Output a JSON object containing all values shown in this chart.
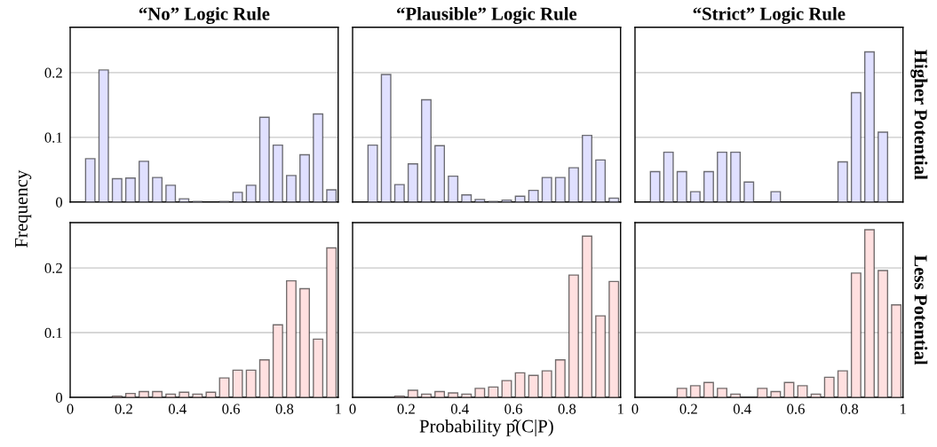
{
  "chart_data": [
    {
      "type": "histogram",
      "title": "“No” Logic Rule",
      "ylabel": "Frequency",
      "bins": [
        0,
        0.05,
        0.1,
        0.15,
        0.2,
        0.25,
        0.3,
        0.35,
        0.4,
        0.45,
        0.5,
        0.55,
        0.6,
        0.65,
        0.7,
        0.75,
        0.8,
        0.85,
        0.9,
        0.95,
        1
      ],
      "values": [
        0,
        0.067,
        0.204,
        0.036,
        0.037,
        0.063,
        0.038,
        0.026,
        0.005,
        0.001,
        0,
        0.001,
        0.015,
        0.026,
        0.131,
        0.088,
        0.041,
        0.073,
        0.136,
        0.019
      ],
      "color": "#e0e0ff",
      "xlim": [
        0,
        1
      ],
      "xticks": [
        0,
        0.2,
        0.4,
        0.6,
        0.8,
        1
      ],
      "ylim": [
        0,
        0.27
      ],
      "yticks": [
        0,
        0.1,
        0.2
      ],
      "grid": "y",
      "tick_labels": "y"
    },
    {
      "type": "histogram",
      "title": "“Plausible” Logic Rule",
      "bins": [
        0,
        0.05,
        0.1,
        0.15,
        0.2,
        0.25,
        0.3,
        0.35,
        0.4,
        0.45,
        0.5,
        0.55,
        0.6,
        0.65,
        0.7,
        0.75,
        0.8,
        0.85,
        0.9,
        0.95,
        1
      ],
      "values": [
        0,
        0.088,
        0.197,
        0.027,
        0.059,
        0.158,
        0.087,
        0.04,
        0.011,
        0.004,
        0.001,
        0.003,
        0.009,
        0.018,
        0.038,
        0.038,
        0.053,
        0.103,
        0.065,
        0.006
      ],
      "color": "#e0e0ff",
      "xlim": [
        0,
        1
      ],
      "xticks": [
        0,
        0.2,
        0.4,
        0.6,
        0.8,
        1
      ],
      "ylim": [
        0,
        0.27
      ],
      "yticks": [
        0,
        0.1,
        0.2
      ],
      "grid": "y",
      "tick_labels": false
    },
    {
      "type": "histogram",
      "title": "“Strict” Logic Rule",
      "y2label": "Higher Potential",
      "bins": [
        0,
        0.05,
        0.1,
        0.15,
        0.2,
        0.25,
        0.3,
        0.35,
        0.4,
        0.45,
        0.5,
        0.55,
        0.6,
        0.65,
        0.7,
        0.75,
        0.8,
        0.85,
        0.9,
        0.95,
        1
      ],
      "values": [
        0,
        0.047,
        0.077,
        0.047,
        0.016,
        0.047,
        0.077,
        0.077,
        0.031,
        0,
        0.016,
        0,
        0,
        0,
        0,
        0.062,
        0.169,
        0.232,
        0.108,
        0
      ],
      "color": "#e0e0ff",
      "xlim": [
        0,
        1
      ],
      "xticks": [
        0,
        0.2,
        0.4,
        0.6,
        0.8,
        1
      ],
      "ylim": [
        0,
        0.27
      ],
      "yticks": [
        0,
        0.1,
        0.2
      ],
      "grid": "y",
      "tick_labels": false
    },
    {
      "type": "histogram",
      "bins": [
        0,
        0.05,
        0.1,
        0.15,
        0.2,
        0.25,
        0.3,
        0.35,
        0.4,
        0.45,
        0.5,
        0.55,
        0.6,
        0.65,
        0.7,
        0.75,
        0.8,
        0.85,
        0.9,
        0.95,
        1
      ],
      "values": [
        0,
        0,
        0,
        0.002,
        0.006,
        0.009,
        0.009,
        0.005,
        0.008,
        0.005,
        0.008,
        0.03,
        0.042,
        0.042,
        0.058,
        0.112,
        0.18,
        0.168,
        0.09,
        0.231
      ],
      "color": "#ffe0e0",
      "xlim": [
        0,
        1
      ],
      "xticks": [
        0,
        0.2,
        0.4,
        0.6,
        0.8,
        1
      ],
      "ylim": [
        0,
        0.27
      ],
      "yticks": [
        0,
        0.1,
        0.2
      ],
      "grid": "y"
    },
    {
      "type": "histogram",
      "xlabel": "Probability p̂(C|P)",
      "bins": [
        0,
        0.05,
        0.1,
        0.15,
        0.2,
        0.25,
        0.3,
        0.35,
        0.4,
        0.45,
        0.5,
        0.55,
        0.6,
        0.65,
        0.7,
        0.75,
        0.8,
        0.85,
        0.9,
        0.95,
        1
      ],
      "values": [
        0,
        0,
        0,
        0.002,
        0.011,
        0.005,
        0.009,
        0.007,
        0.005,
        0.014,
        0.016,
        0.026,
        0.038,
        0.034,
        0.041,
        0.058,
        0.189,
        0.249,
        0.126,
        0.179
      ],
      "color": "#ffe0e0",
      "xlim": [
        0,
        1
      ],
      "xticks": [
        0,
        0.2,
        0.4,
        0.6,
        0.8,
        1
      ],
      "ylim": [
        0,
        0.27
      ],
      "yticks": [
        0,
        0.1,
        0.2
      ],
      "grid": "y",
      "tick_labels": "x"
    },
    {
      "type": "histogram",
      "y2label": "Less Potential",
      "bins": [
        0,
        0.05,
        0.1,
        0.15,
        0.2,
        0.25,
        0.3,
        0.35,
        0.4,
        0.45,
        0.5,
        0.55,
        0.6,
        0.65,
        0.7,
        0.75,
        0.8,
        0.85,
        0.9,
        0.95,
        1
      ],
      "values": [
        0,
        0,
        0,
        0.014,
        0.018,
        0.023,
        0.014,
        0.005,
        0,
        0.014,
        0.009,
        0.023,
        0.018,
        0.005,
        0.031,
        0.041,
        0.192,
        0.259,
        0.196,
        0.143
      ],
      "color": "#ffe0e0",
      "xlim": [
        0,
        1
      ],
      "xticks": [
        0,
        0.2,
        0.4,
        0.6,
        0.8,
        1
      ],
      "ylim": [
        0,
        0.27
      ],
      "yticks": [
        0,
        0.1,
        0.2
      ],
      "grid": "y",
      "tick_labels": "x"
    }
  ]
}
